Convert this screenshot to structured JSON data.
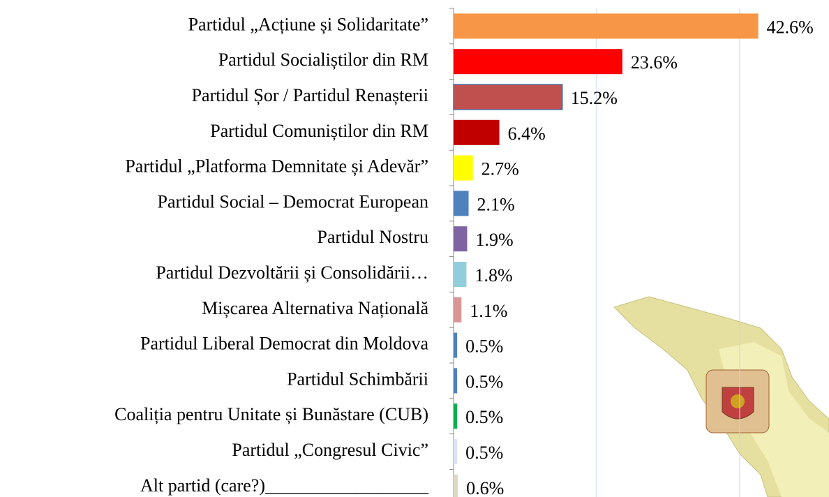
{
  "chart_data": {
    "type": "bar",
    "orientation": "horizontal",
    "categories": [
      "Partidul „Acțiune și Solidaritate”",
      "Partidul Socialiștilor din RM",
      "Partidul Șor / Partidul Renașterii",
      "Partidul Comuniștilor din RM",
      "Partidul „Platforma Demnitate și Adevăr”",
      "Partidul Social – Democrat European",
      "Partidul Nostru",
      "Partidul Dezvoltării și Consolidării…",
      "Mișcarea Alternativa Națională",
      "Partidul Liberal Democrat din Moldova",
      "Partidul Schimbării",
      "Coaliția pentru Unitate și Bunăstare (CUB)",
      "Partidul „Congresul Civic”",
      "Alt partid (care?)__________________"
    ],
    "values": [
      42.6,
      23.6,
      15.2,
      6.4,
      2.7,
      2.1,
      1.9,
      1.8,
      1.1,
      0.5,
      0.5,
      0.5,
      0.5,
      0.6
    ],
    "value_labels": [
      "42.6%",
      "23.6%",
      "15.2%",
      "6.4%",
      "2.7%",
      "2.1%",
      "1.9%",
      "1.8%",
      "1.1%",
      "0.5%",
      "0.5%",
      "0.5%",
      "0.5%",
      "0.6%"
    ],
    "colors": [
      "#f79646",
      "#ff0000",
      "#c0504d",
      "#c00000",
      "#ffff00",
      "#4f81bd",
      "#8064a2",
      "#92cddc",
      "#d99694",
      "#4f81bd",
      "#4f81bd",
      "#00b050",
      "#dce6f2",
      "#ddd9c3"
    ],
    "xlim": [
      0,
      52
    ],
    "xticks": [
      0,
      20,
      40
    ],
    "grid": true
  }
}
